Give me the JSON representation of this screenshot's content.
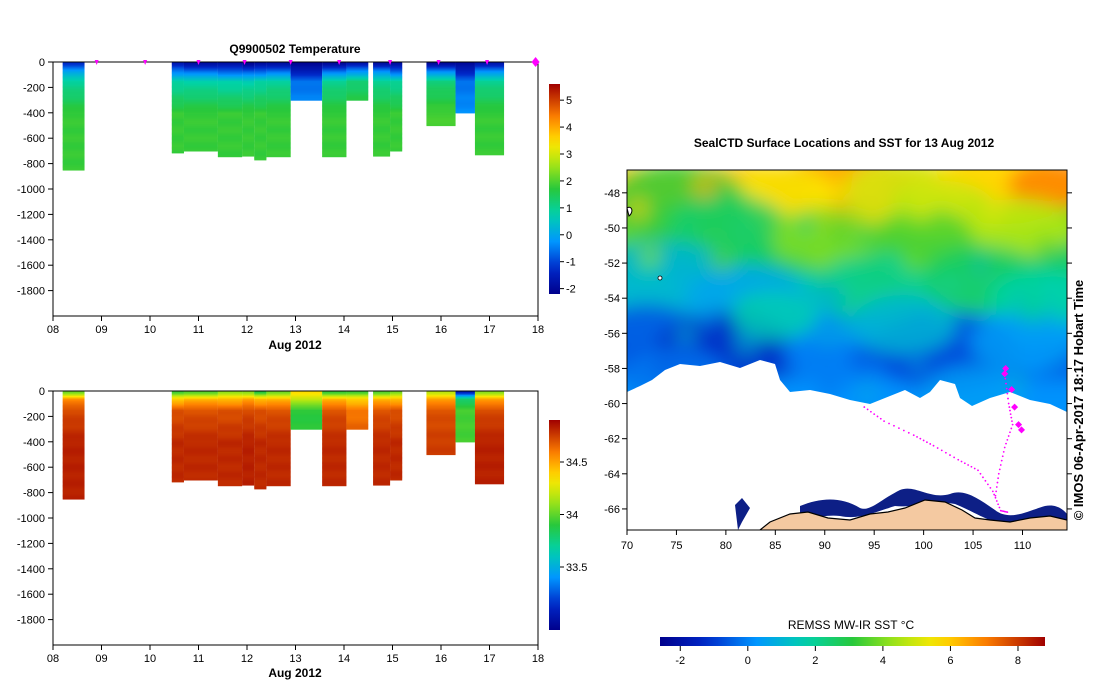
{
  "chart_data": [
    {
      "type": "heatmap",
      "title": "Q9900502  Temperature",
      "xlabel": "Aug 2012",
      "ylabel": "",
      "x_ticks": [
        "08",
        "09",
        "10",
        "11",
        "12",
        "13",
        "14",
        "15",
        "16",
        "17",
        "18"
      ],
      "xlim": [
        8,
        18
      ],
      "y_ticks": [
        "0",
        "-200",
        "-400",
        "-600",
        "-800",
        "-1000",
        "-1200",
        "-1400",
        "-1600",
        "-1800"
      ],
      "ylim": [
        -2000,
        0
      ],
      "colorbar_ticks": [
        "5",
        "4",
        "3",
        "2",
        "1",
        "0",
        "-1",
        "-2"
      ],
      "colorbar_range": [
        -2.2,
        5.6
      ],
      "profiles": [
        {
          "t0": 8.2,
          "t1": 8.65,
          "bottom": -850,
          "top": [
            -1.2,
            -0.2,
            0.9
          ],
          "deep": 1.8
        },
        {
          "t0": 10.45,
          "t1": 10.7,
          "bottom": -715,
          "top": [
            -1.6,
            -0.6,
            0.8
          ],
          "deep": 1.8
        },
        {
          "t0": 10.7,
          "t1": 11.4,
          "bottom": -700,
          "top": [
            -1.8,
            -0.8,
            0.8
          ],
          "deep": 1.8
        },
        {
          "t0": 11.4,
          "t1": 11.9,
          "bottom": -745,
          "top": [
            -1.8,
            -0.9,
            0.7
          ],
          "deep": 1.8
        },
        {
          "t0": 11.9,
          "t1": 12.15,
          "bottom": -740,
          "top": [
            -2.0,
            -1.0,
            0.7
          ],
          "deep": 1.8
        },
        {
          "t0": 12.15,
          "t1": 12.4,
          "bottom": -770,
          "top": [
            -1.9,
            -0.9,
            0.8
          ],
          "deep": 1.8
        },
        {
          "t0": 12.4,
          "t1": 12.9,
          "bottom": -745,
          "top": [
            -1.8,
            -0.8,
            0.9
          ],
          "deep": 1.8
        },
        {
          "t0": 12.9,
          "t1": 13.55,
          "bottom": -300,
          "top": [
            -2.1,
            -1.6,
            -0.6
          ],
          "deep": -0.3
        },
        {
          "t0": 13.55,
          "t1": 14.05,
          "bottom": -745,
          "top": [
            -1.9,
            -0.8,
            1.0
          ],
          "deep": 1.8
        },
        {
          "t0": 14.05,
          "t1": 14.5,
          "bottom": -300,
          "top": [
            -1.7,
            -0.4,
            1.2
          ],
          "deep": 1.9
        },
        {
          "t0": 14.6,
          "t1": 14.95,
          "bottom": -740,
          "top": [
            -1.8,
            -0.5,
            1.0
          ],
          "deep": 1.8
        },
        {
          "t0": 14.95,
          "t1": 15.2,
          "bottom": -700,
          "top": [
            -1.9,
            -0.9,
            0.9
          ],
          "deep": 1.8
        },
        {
          "t0": 15.7,
          "t1": 16.3,
          "bottom": -500,
          "top": [
            -1.9,
            -0.6,
            1.2
          ],
          "deep": 1.9
        },
        {
          "t0": 16.3,
          "t1": 16.7,
          "bottom": -400,
          "top": [
            -2.0,
            -1.5,
            -0.6
          ],
          "deep": -0.3
        },
        {
          "t0": 16.7,
          "t1": 17.3,
          "bottom": -730,
          "top": [
            -1.6,
            -0.5,
            1.0
          ],
          "deep": 1.8
        }
      ],
      "surface_markers": [
        8.9,
        9.9,
        11.0,
        11.95,
        12.9,
        13.9,
        14.95,
        15.95,
        16.95,
        17.95
      ]
    },
    {
      "type": "heatmap",
      "title": "",
      "xlabel": "Aug 2012",
      "ylabel": "",
      "x_ticks": [
        "08",
        "09",
        "10",
        "11",
        "12",
        "13",
        "14",
        "15",
        "16",
        "17",
        "18"
      ],
      "xlim": [
        8,
        18
      ],
      "y_ticks": [
        "0",
        "-200",
        "-400",
        "-600",
        "-800",
        "-1000",
        "-1200",
        "-1400",
        "-1600",
        "-1800"
      ],
      "ylim": [
        -2000,
        0
      ],
      "colorbar_ticks": [
        "34.5",
        "34",
        "33.5"
      ],
      "colorbar_range": [
        32.9,
        34.9
      ],
      "profiles": [
        {
          "t0": 8.2,
          "t1": 8.65,
          "bottom": -850,
          "top": [
            34.05,
            34.55,
            34.72
          ],
          "deep": 34.82
        },
        {
          "t0": 10.45,
          "t1": 10.7,
          "bottom": -715,
          "top": [
            33.95,
            34.4,
            34.7
          ],
          "deep": 34.8
        },
        {
          "t0": 10.7,
          "t1": 11.4,
          "bottom": -700,
          "top": [
            34.0,
            34.45,
            34.7
          ],
          "deep": 34.8
        },
        {
          "t0": 11.4,
          "t1": 11.9,
          "bottom": -745,
          "top": [
            34.1,
            34.45,
            34.7
          ],
          "deep": 34.8
        },
        {
          "t0": 11.9,
          "t1": 12.15,
          "bottom": -740,
          "top": [
            34.1,
            34.5,
            34.72
          ],
          "deep": 34.82
        },
        {
          "t0": 12.15,
          "t1": 12.4,
          "bottom": -770,
          "top": [
            33.9,
            34.45,
            34.7
          ],
          "deep": 34.8
        },
        {
          "t0": 12.4,
          "t1": 12.9,
          "bottom": -745,
          "top": [
            34.05,
            34.45,
            34.7
          ],
          "deep": 34.8
        },
        {
          "t0": 12.9,
          "t1": 13.55,
          "bottom": -300,
          "top": [
            34.35,
            34.2,
            33.9
          ],
          "deep": 33.9
        },
        {
          "t0": 13.55,
          "t1": 14.05,
          "bottom": -745,
          "top": [
            33.95,
            34.45,
            34.7
          ],
          "deep": 34.8
        },
        {
          "t0": 14.05,
          "t1": 14.5,
          "bottom": -300,
          "top": [
            33.95,
            34.4,
            34.6
          ],
          "deep": 34.7
        },
        {
          "t0": 14.6,
          "t1": 14.95,
          "bottom": -740,
          "top": [
            34.0,
            34.45,
            34.7
          ],
          "deep": 34.8
        },
        {
          "t0": 14.95,
          "t1": 15.2,
          "bottom": -700,
          "top": [
            34.05,
            34.45,
            34.7
          ],
          "deep": 34.8
        },
        {
          "t0": 15.7,
          "t1": 16.3,
          "bottom": -500,
          "top": [
            34.2,
            34.5,
            34.7
          ],
          "deep": 34.75
        },
        {
          "t0": 16.3,
          "t1": 16.7,
          "bottom": -400,
          "top": [
            33.1,
            33.8,
            33.95
          ],
          "deep": 33.95
        },
        {
          "t0": 16.7,
          "t1": 17.3,
          "bottom": -730,
          "top": [
            34.1,
            34.5,
            34.72
          ],
          "deep": 34.82
        }
      ]
    },
    {
      "type": "heatmap",
      "title": "SealCTD Surface Locations and SST for 13 Aug 2012",
      "xlabel": "",
      "ylabel": "",
      "x_ticks": [
        "70",
        "75",
        "80",
        "85",
        "90",
        "95",
        "100",
        "105",
        "110"
      ],
      "xlim": [
        70,
        114.5
      ],
      "y_ticks": [
        "-48",
        "-50",
        "-52",
        "-54",
        "-56",
        "-58",
        "-60",
        "-62",
        "-64",
        "-66"
      ],
      "ylim": [
        -67.2,
        -46.7
      ],
      "colorbar_label": "REMSS MW-IR SST °C",
      "colorbar_ticks": [
        "-2",
        "0",
        "2",
        "4",
        "6",
        "8"
      ],
      "colorbar_range": [
        -2.6,
        8.8
      ],
      "seal_positions": [
        [
          108.2,
          -58.3
        ],
        [
          108.3,
          -58.0
        ],
        [
          108.9,
          -59.2
        ],
        [
          109.2,
          -60.2
        ],
        [
          109.6,
          -61.2
        ],
        [
          109.9,
          -61.5
        ]
      ],
      "side_note": "© IMOS 06-Apr-2017 18:17 Hobart Time"
    }
  ]
}
